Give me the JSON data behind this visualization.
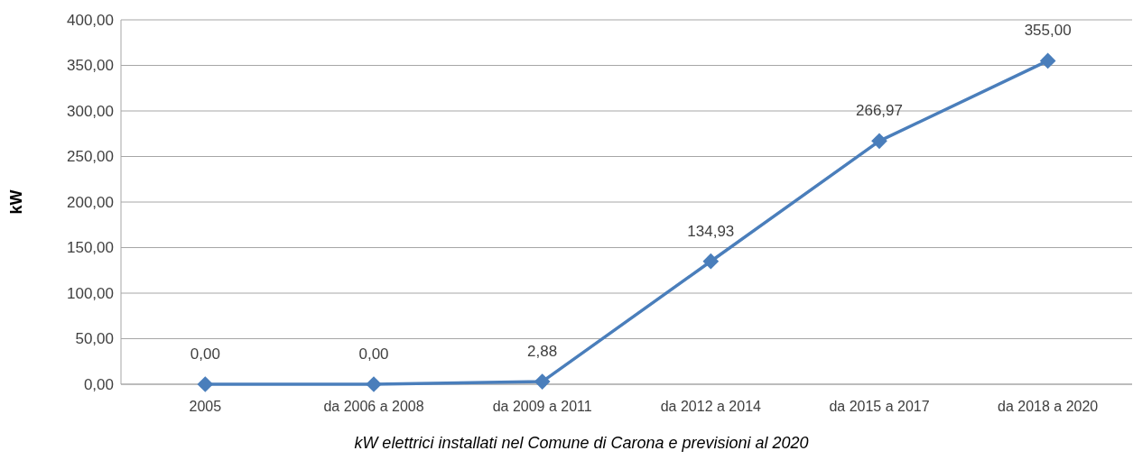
{
  "chart_data": {
    "type": "line",
    "ylabel": "kW",
    "categories": [
      "2005",
      "da 2006 a 2008",
      "da 2009 a 2011",
      "da 2012 a 2014",
      "da 2015 a 2017",
      "da 2018 a 2020"
    ],
    "series": [
      {
        "color": "#4a7ebb",
        "values": [
          0,
          0,
          2.88,
          134.93,
          266.97,
          355
        ],
        "value_labels": [
          "0,00",
          "0,00",
          "2,88",
          "134,93",
          "266,97",
          "355,00"
        ]
      }
    ],
    "ylim": [
      0,
      400
    ],
    "yticks": [
      {
        "value": 0,
        "label": "0,00"
      },
      {
        "value": 50,
        "label": "50,00"
      },
      {
        "value": 100,
        "label": "100,00"
      },
      {
        "value": 150,
        "label": "150,00"
      },
      {
        "value": 200,
        "label": "200,00"
      },
      {
        "value": 250,
        "label": "250,00"
      },
      {
        "value": 300,
        "label": "300,00"
      },
      {
        "value": 350,
        "label": "350,00"
      },
      {
        "value": 400,
        "label": "400,00"
      }
    ],
    "grid": "y",
    "marker": "diamond",
    "line_style": "solid",
    "annotations": [
      "kW elettrici installati nel Comune di Carona e previsioni al 2020"
    ]
  }
}
